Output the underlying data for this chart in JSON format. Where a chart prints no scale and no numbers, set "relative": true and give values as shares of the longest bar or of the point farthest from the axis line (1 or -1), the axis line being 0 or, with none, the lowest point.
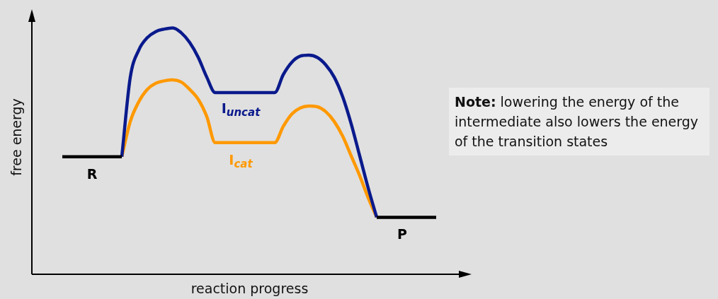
{
  "chart_data": {
    "type": "line",
    "relative": true,
    "xlabel": "reaction progress",
    "ylabel": "free energy",
    "legend": false,
    "marker": "none",
    "line_style": "solid",
    "categories": [
      null,
      null,
      null,
      null,
      null,
      null,
      null,
      null,
      null,
      null,
      null,
      null,
      null,
      null,
      null,
      null,
      null,
      null,
      null,
      null,
      null,
      null,
      null,
      null,
      null,
      null,
      null,
      null,
      null,
      null,
      null,
      null,
      null,
      null,
      null,
      null,
      null,
      null,
      null,
      null,
      null,
      null,
      null,
      null,
      null,
      null,
      null,
      null,
      null
    ],
    "series": [
      {
        "color": "#000000",
        "values": [
          null,
          null,
          null,
          0.477,
          0.477,
          0.477,
          0.477,
          0.477,
          0.477,
          0.477,
          0.477,
          null,
          null,
          null,
          null,
          null,
          null,
          null,
          null,
          null,
          null,
          null,
          null,
          null,
          null,
          null,
          null,
          null,
          null,
          null,
          null,
          null,
          null,
          null,
          null,
          null,
          null,
          null,
          null,
          null,
          null,
          null,
          null,
          null,
          null,
          null,
          null,
          null,
          null
        ]
      },
      {
        "color": "#000000",
        "values": [
          null,
          null,
          null,
          null,
          null,
          null,
          null,
          null,
          null,
          null,
          null,
          null,
          null,
          null,
          null,
          null,
          null,
          null,
          null,
          null,
          null,
          null,
          null,
          null,
          null,
          null,
          null,
          null,
          null,
          null,
          null,
          null,
          null,
          null,
          null,
          null,
          null,
          null,
          null,
          null,
          0.231,
          0.231,
          0.231,
          0.231,
          0.231,
          0.231,
          0.231,
          0.231,
          null
        ]
      },
      {
        "color": "#0a1a8c",
        "values": [
          null,
          null,
          null,
          null,
          null,
          null,
          null,
          null,
          null,
          null,
          0.477,
          0.8,
          0.91,
          0.96,
          0.985,
          0.995,
          1.0,
          0.98,
          0.94,
          0.88,
          0.8,
          0.737,
          0.737,
          0.737,
          0.737,
          0.737,
          0.737,
          0.737,
          0.737,
          0.81,
          0.86,
          0.885,
          0.889,
          0.88,
          0.85,
          0.8,
          0.72,
          0.61,
          0.48,
          0.35,
          0.231,
          null,
          null,
          null,
          null,
          null,
          null,
          null,
          null
        ]
      },
      {
        "color": "#ff9900",
        "values": [
          null,
          null,
          null,
          null,
          null,
          null,
          null,
          null,
          null,
          null,
          0.477,
          0.62,
          0.7,
          0.75,
          0.775,
          0.785,
          0.789,
          0.78,
          0.75,
          0.71,
          0.64,
          0.534,
          0.534,
          0.534,
          0.534,
          0.534,
          0.534,
          0.534,
          0.534,
          0.6,
          0.65,
          0.675,
          0.683,
          0.68,
          0.66,
          0.62,
          0.56,
          0.48,
          0.4,
          0.31,
          0.231,
          null,
          null,
          null,
          null,
          null,
          null,
          null,
          null
        ]
      }
    ],
    "annotations": [
      "R",
      "I$_{uncat}$",
      "I$_{cat}$",
      "P",
      "Note: lowering the energy of the intermediate also lowers the energy of the transition states"
    ]
  }
}
